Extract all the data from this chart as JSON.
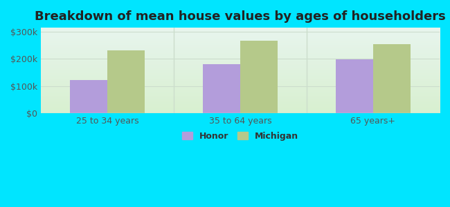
{
  "title": "Breakdown of mean house values by ages of householders",
  "categories": [
    "25 to 34 years",
    "35 to 64 years",
    "65 years+"
  ],
  "honor_values": [
    122000,
    182000,
    198000
  ],
  "michigan_values": [
    232000,
    268000,
    255000
  ],
  "honor_color": "#b39ddb",
  "michigan_color": "#b5c98a",
  "background_color": "#00e5ff",
  "grad_top": "#e8f5ee",
  "grad_bottom": "#d8f0d0",
  "ylim": [
    0,
    315000
  ],
  "yticks": [
    0,
    100000,
    200000,
    300000
  ],
  "ytick_labels": [
    "$0",
    "$100k",
    "$200k",
    "$300k"
  ],
  "legend_honor": "Honor",
  "legend_michigan": "Michigan",
  "bar_width": 0.28,
  "title_fontsize": 13,
  "tick_fontsize": 9,
  "legend_fontsize": 9,
  "divider_color": "#ccddcc",
  "grid_color": "#ccddcc",
  "tick_color": "#555555"
}
